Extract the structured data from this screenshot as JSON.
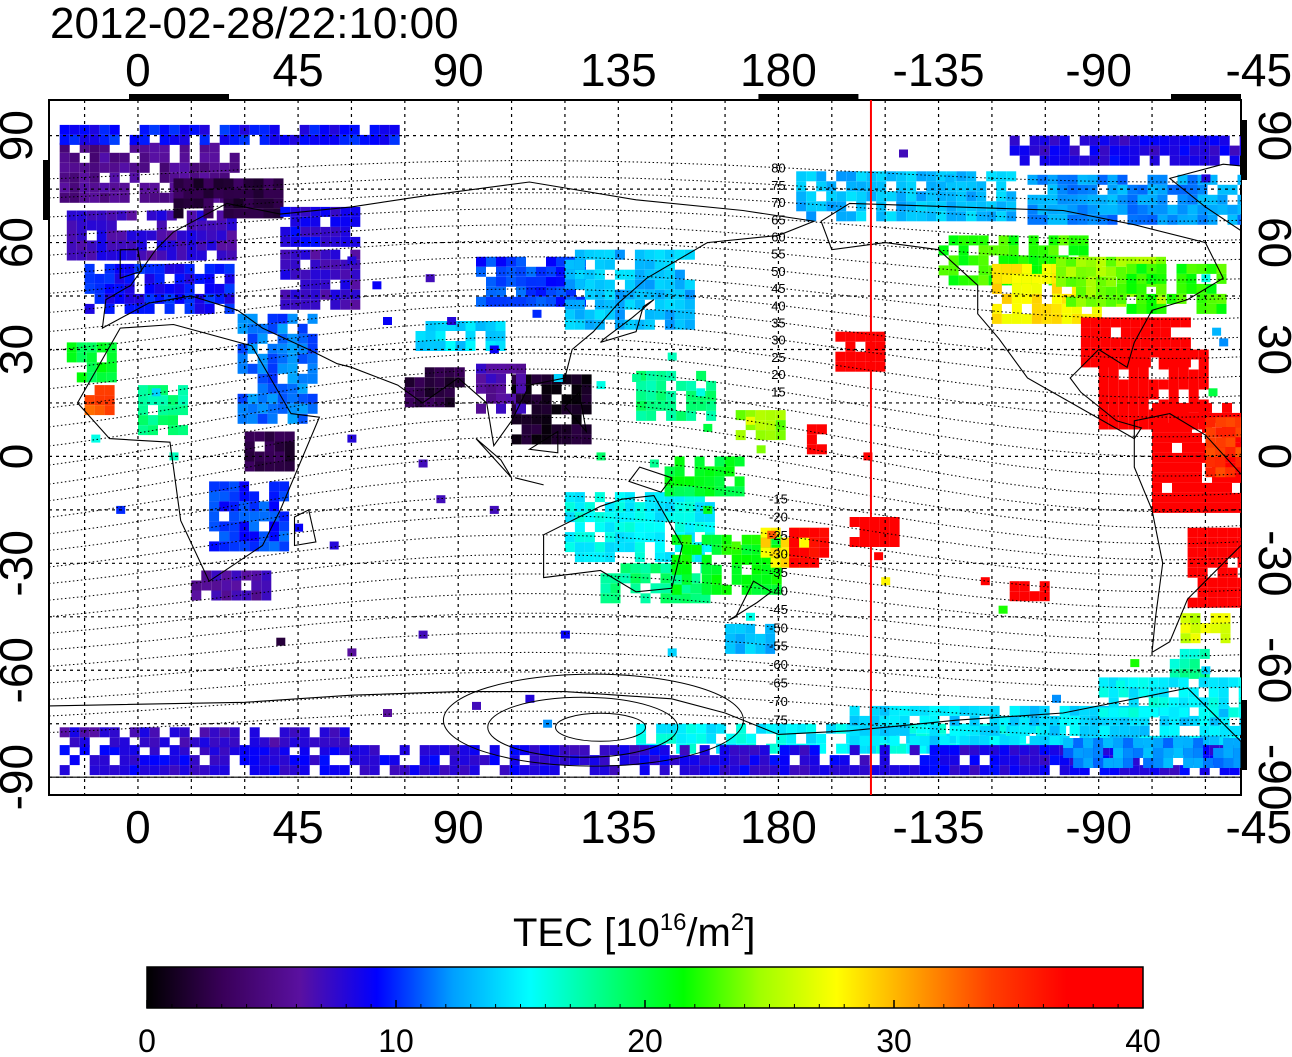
{
  "header": {
    "timestamp": "2012-02-28/22:10:00"
  },
  "map": {
    "lon_start": -25,
    "lon_end": 310,
    "lat_min": -95,
    "lat_max": 100,
    "grid": true,
    "top_tick_labels": [
      {
        "lon": 0,
        "label": "0"
      },
      {
        "lon": 45,
        "label": "45"
      },
      {
        "lon": 90,
        "label": "90"
      },
      {
        "lon": 135,
        "label": "135"
      },
      {
        "lon": 180,
        "label": "180"
      },
      {
        "lon": 225,
        "label": "-135"
      },
      {
        "lon": 270,
        "label": "-90"
      },
      {
        "lon": 315,
        "label": "-45"
      }
    ],
    "bottom_tick_labels": [
      {
        "lon": 0,
        "label": "0"
      },
      {
        "lon": 45,
        "label": "45"
      },
      {
        "lon": 90,
        "label": "90"
      },
      {
        "lon": 135,
        "label": "135"
      },
      {
        "lon": 180,
        "label": "180"
      },
      {
        "lon": 225,
        "label": "-135"
      },
      {
        "lon": 270,
        "label": "-90"
      },
      {
        "lon": 315,
        "label": "-45"
      }
    ],
    "lat_tick_labels": [
      {
        "lat": 90,
        "label": "90"
      },
      {
        "lat": 60,
        "label": "60"
      },
      {
        "lat": 30,
        "label": "30"
      },
      {
        "lat": 0,
        "label": "0"
      },
      {
        "lat": -30,
        "label": "-30"
      },
      {
        "lat": -60,
        "label": "-60"
      },
      {
        "lat": -90,
        "label": "-90"
      }
    ],
    "terminator_lon": 206,
    "magnetic_contour_labels": [
      "80",
      "75",
      "70",
      "65",
      "60",
      "55",
      "50",
      "45",
      "40",
      "35",
      "30",
      "25",
      "20",
      "15",
      "-15",
      "-20",
      "-25",
      "-30",
      "-35",
      "-40",
      "-45",
      "-50",
      "-55",
      "-60",
      "-65",
      "-70",
      "-75"
    ],
    "tec_regions": [
      {
        "lon": -22,
        "lat": 72,
        "w": 50,
        "h": 16,
        "tec": 5
      },
      {
        "lon": -20,
        "lat": 55,
        "w": 45,
        "h": 14,
        "tec": 7
      },
      {
        "lon": 10,
        "lat": 68,
        "w": 30,
        "h": 10,
        "tec": 2
      },
      {
        "lon": -15,
        "lat": 40,
        "w": 40,
        "h": 14,
        "tec": 9
      },
      {
        "lon": 40,
        "lat": 42,
        "w": 22,
        "h": 16,
        "tec": 7
      },
      {
        "lon": -22,
        "lat": 88,
        "w": 95,
        "h": 5,
        "tec": 9
      },
      {
        "lon": 40,
        "lat": 60,
        "w": 20,
        "h": 10,
        "tec": 8
      },
      {
        "lon": 95,
        "lat": 44,
        "w": 30,
        "h": 12,
        "tec": 10
      },
      {
        "lon": 120,
        "lat": 38,
        "w": 35,
        "h": 20,
        "tec": 13
      },
      {
        "lon": 78,
        "lat": 30,
        "w": 25,
        "h": 8,
        "tec": 14
      },
      {
        "lon": 75,
        "lat": 15,
        "w": 15,
        "h": 10,
        "tec": 2
      },
      {
        "lon": 105,
        "lat": 5,
        "w": 22,
        "h": 18,
        "tec": 1
      },
      {
        "lon": 95,
        "lat": 14,
        "w": 12,
        "h": 12,
        "tec": 6
      },
      {
        "lon": 28,
        "lat": 10,
        "w": 20,
        "h": 30,
        "tec": 11
      },
      {
        "lon": 30,
        "lat": -3,
        "w": 14,
        "h": 10,
        "tec": 2
      },
      {
        "lon": 20,
        "lat": -25,
        "w": 20,
        "h": 18,
        "tec": 10
      },
      {
        "lon": 15,
        "lat": -40,
        "w": 20,
        "h": 8,
        "tec": 6
      },
      {
        "lon": -20,
        "lat": 22,
        "w": 14,
        "h": 10,
        "tec": 20
      },
      {
        "lon": -15,
        "lat": 14,
        "w": 6,
        "h": 6,
        "tec": 33
      },
      {
        "lon": 0,
        "lat": 8,
        "w": 14,
        "h": 12,
        "tec": 18
      },
      {
        "lon": 120,
        "lat": -28,
        "w": 40,
        "h": 18,
        "tec": 15
      },
      {
        "lon": 130,
        "lat": -40,
        "w": 30,
        "h": 10,
        "tec": 18
      },
      {
        "lon": 150,
        "lat": -38,
        "w": 30,
        "h": 16,
        "tec": 21
      },
      {
        "lon": 175,
        "lat": -30,
        "w": 12,
        "h": 10,
        "tec": 28
      },
      {
        "lon": 183,
        "lat": -30,
        "w": 10,
        "h": 10,
        "tec": 37
      },
      {
        "lon": 148,
        "lat": -10,
        "w": 20,
        "h": 10,
        "tec": 20
      },
      {
        "lon": 168,
        "lat": 5,
        "w": 12,
        "h": 8,
        "tec": 24
      },
      {
        "lon": 140,
        "lat": 10,
        "w": 20,
        "h": 14,
        "tec": 18
      },
      {
        "lon": 165,
        "lat": -53,
        "w": 14,
        "h": 6,
        "tec": 13
      },
      {
        "lon": 196,
        "lat": 25,
        "w": 14,
        "h": 10,
        "tec": 40
      },
      {
        "lon": 200,
        "lat": -25,
        "w": 12,
        "h": 8,
        "tec": 38
      },
      {
        "lon": 188,
        "lat": 3,
        "w": 4,
        "h": 6,
        "tec": 40
      },
      {
        "lon": 245,
        "lat": -40,
        "w": 10,
        "h": 5,
        "tec": 38
      },
      {
        "lon": 225,
        "lat": 50,
        "w": 40,
        "h": 12,
        "tec": 22
      },
      {
        "lon": 240,
        "lat": 38,
        "w": 30,
        "h": 16,
        "tec": 28
      },
      {
        "lon": 258,
        "lat": 42,
        "w": 30,
        "h": 14,
        "tec": 24
      },
      {
        "lon": 275,
        "lat": 40,
        "w": 30,
        "h": 14,
        "tec": 22
      },
      {
        "lon": 185,
        "lat": 68,
        "w": 60,
        "h": 12,
        "tec": 13
      },
      {
        "lon": 250,
        "lat": 65,
        "w": 70,
        "h": 14,
        "tec": 12
      },
      {
        "lon": 245,
        "lat": 82,
        "w": 70,
        "h": 8,
        "tec": 8
      },
      {
        "lon": 265,
        "lat": 25,
        "w": 30,
        "h": 14,
        "tec": 38
      },
      {
        "lon": 270,
        "lat": 10,
        "w": 30,
        "h": 20,
        "tec": 40
      },
      {
        "lon": 285,
        "lat": -15,
        "w": 40,
        "h": 30,
        "tec": 40
      },
      {
        "lon": 300,
        "lat": -5,
        "w": 20,
        "h": 16,
        "tec": 34
      },
      {
        "lon": 295,
        "lat": -40,
        "w": 20,
        "h": 20,
        "tec": 38
      },
      {
        "lon": 293,
        "lat": -52,
        "w": 12,
        "h": 8,
        "tec": 26
      },
      {
        "lon": 290,
        "lat": -62,
        "w": 10,
        "h": 8,
        "tec": 17
      },
      {
        "lon": 140,
        "lat": -83,
        "w": 120,
        "h": 8,
        "tec": 15
      },
      {
        "lon": 200,
        "lat": -80,
        "w": 110,
        "h": 10,
        "tec": 14
      },
      {
        "lon": 270,
        "lat": -72,
        "w": 40,
        "h": 10,
        "tec": 15
      },
      {
        "lon": -22,
        "lat": -87,
        "w": 330,
        "h": 6,
        "tec": 8
      },
      {
        "lon": -22,
        "lat": -80,
        "w": 80,
        "h": 4,
        "tec": 7
      },
      {
        "lon": 260,
        "lat": -85,
        "w": 50,
        "h": 6,
        "tec": 12
      }
    ],
    "tec_dots": [
      {
        "lon": 60,
        "lat": 55,
        "tec": 8
      },
      {
        "lon": 67,
        "lat": 48,
        "tec": 9
      },
      {
        "lon": 82,
        "lat": 50,
        "tec": 7
      },
      {
        "lon": 70,
        "lat": 38,
        "tec": 9
      },
      {
        "lon": 88,
        "lat": 38,
        "tec": 8
      },
      {
        "lon": 100,
        "lat": 30,
        "tec": 9
      },
      {
        "lon": 112,
        "lat": 40,
        "tec": 10
      },
      {
        "lon": 118,
        "lat": 22,
        "tec": 14
      },
      {
        "lon": 130,
        "lat": 20,
        "tec": 16
      },
      {
        "lon": 140,
        "lat": 22,
        "tec": 18
      },
      {
        "lon": 150,
        "lat": 28,
        "tec": 17
      },
      {
        "lon": 158,
        "lat": 18,
        "tec": 16
      },
      {
        "lon": 160,
        "lat": 8,
        "tec": 20
      },
      {
        "lon": 172,
        "lat": 10,
        "tec": 27
      },
      {
        "lon": 175,
        "lat": 2,
        "tec": 24
      },
      {
        "lon": 130,
        "lat": 0,
        "tec": 19
      },
      {
        "lon": 145,
        "lat": -2,
        "tec": 18
      },
      {
        "lon": 160,
        "lat": -15,
        "tec": 21
      },
      {
        "lon": 168,
        "lat": -25,
        "tec": 23
      },
      {
        "lon": 178,
        "lat": -22,
        "tec": 33
      },
      {
        "lon": 172,
        "lat": -45,
        "tec": 16
      },
      {
        "lon": 150,
        "lat": -55,
        "tec": 14
      },
      {
        "lon": 120,
        "lat": -50,
        "tec": 9
      },
      {
        "lon": 80,
        "lat": -50,
        "tec": 7
      },
      {
        "lon": 60,
        "lat": -55,
        "tec": 6
      },
      {
        "lon": 40,
        "lat": -52,
        "tec": 2
      },
      {
        "lon": 70,
        "lat": -72,
        "tec": 6
      },
      {
        "lon": 95,
        "lat": -70,
        "tec": 7
      },
      {
        "lon": 110,
        "lat": -68,
        "tec": 8
      },
      {
        "lon": 115,
        "lat": -75,
        "tec": 12
      },
      {
        "lon": 85,
        "lat": -12,
        "tec": 7
      },
      {
        "lon": 100,
        "lat": -15,
        "tec": 7
      },
      {
        "lon": 80,
        "lat": -2,
        "tec": 7
      },
      {
        "lon": 60,
        "lat": 5,
        "tec": 8
      },
      {
        "lon": 45,
        "lat": -20,
        "tec": 9
      },
      {
        "lon": 55,
        "lat": -25,
        "tec": 8
      },
      {
        "lon": -5,
        "lat": -15,
        "tec": 10
      },
      {
        "lon": -12,
        "lat": 5,
        "tec": 16
      },
      {
        "lon": 5,
        "lat": 18,
        "tec": 14
      },
      {
        "lon": 10,
        "lat": 0,
        "tec": 17
      },
      {
        "lon": 205,
        "lat": 0,
        "tec": 40
      },
      {
        "lon": 208,
        "lat": -28,
        "tec": 38
      },
      {
        "lon": 210,
        "lat": -35,
        "tec": 28
      },
      {
        "lon": 238,
        "lat": -35,
        "tec": 39
      },
      {
        "lon": 243,
        "lat": -43,
        "tec": 22
      },
      {
        "lon": 228,
        "lat": 78,
        "tec": 13
      },
      {
        "lon": 215,
        "lat": 85,
        "tec": 7
      },
      {
        "lon": 300,
        "lat": 78,
        "tec": 8
      },
      {
        "lon": 300,
        "lat": 50,
        "tec": 16
      },
      {
        "lon": 303,
        "lat": 35,
        "tec": 13
      },
      {
        "lon": 305,
        "lat": 32,
        "tec": 12
      },
      {
        "lon": 302,
        "lat": 18,
        "tec": 20
      },
      {
        "lon": 305,
        "lat": -72,
        "tec": 13
      },
      {
        "lon": 300,
        "lat": -60,
        "tec": 14
      },
      {
        "lon": 280,
        "lat": -58,
        "tec": 22
      },
      {
        "lon": 276,
        "lat": -64,
        "tec": 16
      },
      {
        "lon": 258,
        "lat": -68,
        "tec": 12
      }
    ]
  },
  "colorbar": {
    "title_main": "TEC  [10",
    "title_sup1": "16",
    "title_mid": "/m",
    "title_sup2": "2",
    "title_end": "]",
    "min": 0,
    "max": 40,
    "tick_labels": [
      {
        "value": 0,
        "label": "0"
      },
      {
        "value": 10,
        "label": "10"
      },
      {
        "value": 20,
        "label": "20"
      },
      {
        "value": 30,
        "label": "30"
      },
      {
        "value": 40,
        "label": "40"
      }
    ],
    "stops": [
      "#000000",
      "#3a005a",
      "#5a10a0",
      "#0000ff",
      "#00a0ff",
      "#00ffff",
      "#00ff80",
      "#00ff00",
      "#a0ff00",
      "#ffff00",
      "#ffa000",
      "#ff4000",
      "#ff0000",
      "#ff0000"
    ]
  }
}
